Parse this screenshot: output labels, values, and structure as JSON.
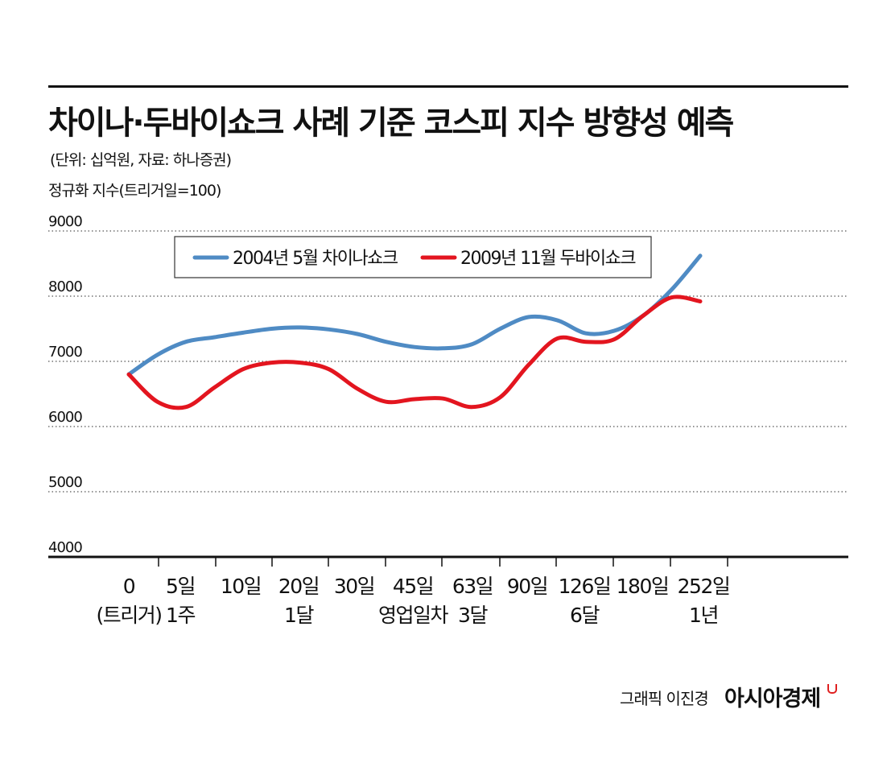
{
  "header": {
    "title": "차이나·두바이쇼크 사례 기준 코스피 지수 방향성 예측",
    "source": "(단위: 십억원, 자료: 하나증권)",
    "index_label": "정규화 지수(트리거일=100)"
  },
  "footer": {
    "credit": "그래픽 이진경",
    "brand": "아시아경제"
  },
  "colors": {
    "series_blue": "#4f8bc4",
    "series_red": "#e3151f",
    "axis": "#111111",
    "grid": "#555555"
  },
  "chart_data": {
    "type": "line",
    "x": [
      "0",
      "5일",
      "10일",
      "20일",
      "30일",
      "45일",
      "63일",
      "90일",
      "126일",
      "180일",
      "252일"
    ],
    "x_sublabels": [
      "(트리거)",
      "1주",
      "",
      "1달",
      "",
      "영업일차",
      "3달",
      "",
      "6달",
      "",
      "1년"
    ],
    "yticks": [
      4000,
      5000,
      6000,
      7000,
      8000,
      9000
    ],
    "ylim": [
      4000,
      9000
    ],
    "grid": "dotted horizontal",
    "legend_position": "top",
    "series": [
      {
        "name": "2004년 5월 차이나쇼크",
        "color": "#4f8bc4",
        "points": [
          [
            0,
            6800
          ],
          [
            0.5,
            7100
          ],
          [
            1,
            7300
          ],
          [
            1.5,
            7370
          ],
          [
            2,
            7440
          ],
          [
            2.5,
            7500
          ],
          [
            3,
            7520
          ],
          [
            3.5,
            7490
          ],
          [
            4,
            7420
          ],
          [
            4.5,
            7300
          ],
          [
            5,
            7220
          ],
          [
            5.5,
            7200
          ],
          [
            6,
            7260
          ],
          [
            6.5,
            7500
          ],
          [
            7,
            7680
          ],
          [
            7.5,
            7630
          ],
          [
            8,
            7430
          ],
          [
            8.5,
            7470
          ],
          [
            9,
            7700
          ],
          [
            9.5,
            8100
          ],
          [
            10,
            8620
          ]
        ]
      },
      {
        "name": "2009년 11월 두바이쇼크",
        "color": "#e3151f",
        "points": [
          [
            0,
            6800
          ],
          [
            0.5,
            6380
          ],
          [
            1,
            6300
          ],
          [
            1.5,
            6600
          ],
          [
            2,
            6880
          ],
          [
            2.5,
            6980
          ],
          [
            3,
            6980
          ],
          [
            3.5,
            6880
          ],
          [
            4,
            6580
          ],
          [
            4.5,
            6380
          ],
          [
            5,
            6420
          ],
          [
            5.5,
            6430
          ],
          [
            6,
            6300
          ],
          [
            6.5,
            6450
          ],
          [
            7,
            6950
          ],
          [
            7.5,
            7350
          ],
          [
            8,
            7300
          ],
          [
            8.5,
            7340
          ],
          [
            9,
            7700
          ],
          [
            9.5,
            7980
          ],
          [
            10,
            7920
          ]
        ]
      }
    ]
  }
}
